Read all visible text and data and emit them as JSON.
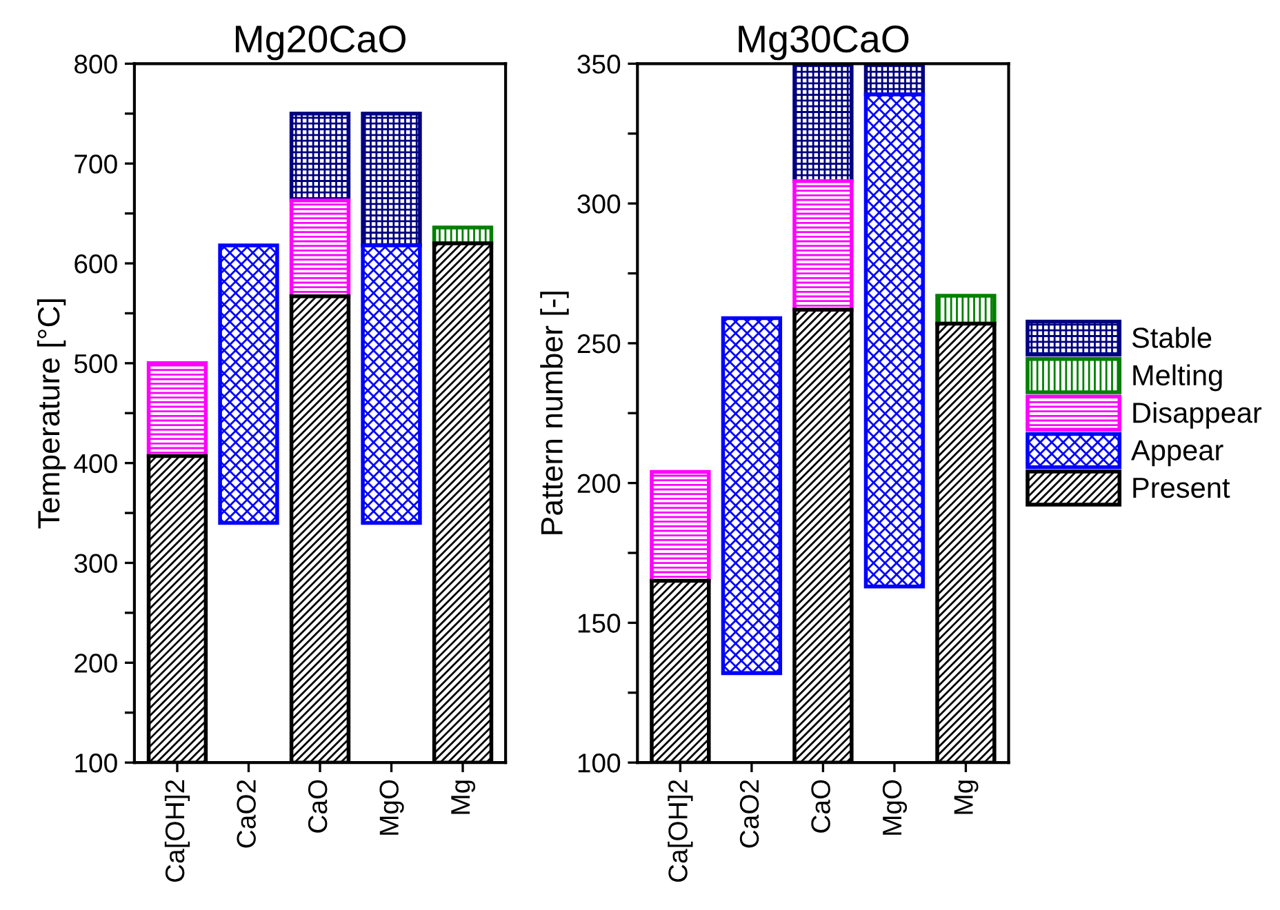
{
  "chart_data": [
    {
      "type": "bar",
      "title": "Mg20CaO",
      "ylabel": "Temperature [°C]",
      "categories": [
        "Ca[OH]2",
        "CaO2",
        "CaO",
        "MgO",
        "Mg"
      ],
      "ylim": [
        100,
        800
      ],
      "yticks": [
        100,
        {
          "value": 150,
          "label": null
        },
        200,
        {
          "value": 250,
          "label": null
        },
        300,
        {
          "value": 350,
          "label": null
        },
        400,
        {
          "value": 450,
          "label": null
        },
        500,
        {
          "value": 550,
          "label": null
        },
        600,
        {
          "value": 650,
          "label": null
        },
        700,
        {
          "value": 750,
          "label": null
        },
        800
      ],
      "legend": false,
      "series": [
        {
          "color": "#000080",
          "base": [
            null,
            null,
            663,
            618,
            null
          ],
          "values": [
            null,
            null,
            87,
            132,
            null
          ]
        },
        {
          "color": "#008000",
          "base": [
            null,
            null,
            null,
            null,
            620
          ],
          "values": [
            null,
            null,
            null,
            null,
            16
          ]
        },
        {
          "color": "#ff00ff",
          "base": [
            407,
            null,
            567,
            null,
            null
          ],
          "values": [
            93,
            null,
            96,
            null,
            null
          ]
        },
        {
          "color": "#0000ff",
          "base": [
            null,
            340,
            null,
            340,
            null
          ],
          "values": [
            null,
            278,
            null,
            278,
            null
          ]
        },
        {
          "color": "#000000",
          "base": [
            100,
            null,
            100,
            null,
            100
          ],
          "values": [
            307,
            null,
            467,
            null,
            520
          ]
        }
      ]
    },
    {
      "type": "bar",
      "title": "Mg30CaO",
      "ylabel": "Pattern number [-]",
      "categories": [
        "Ca[OH]2",
        "CaO2",
        "CaO",
        "MgO",
        "Mg"
      ],
      "ylim": [
        100,
        350
      ],
      "yticks": [
        100,
        {
          "value": 125,
          "label": null
        },
        150,
        {
          "value": 175,
          "label": null
        },
        200,
        {
          "value": 225,
          "label": null
        },
        250,
        {
          "value": 275,
          "label": null
        },
        300,
        {
          "value": 325,
          "label": null
        },
        350
      ],
      "legend": "right",
      "series": [
        {
          "name": "Stable",
          "color": "#000080",
          "base": [
            null,
            null,
            308,
            339,
            null
          ],
          "values": [
            null,
            null,
            42,
            11,
            null
          ]
        },
        {
          "name": "Melting",
          "color": "#008000",
          "base": [
            null,
            null,
            null,
            null,
            257
          ],
          "values": [
            null,
            null,
            null,
            null,
            10
          ]
        },
        {
          "name": "Disappear",
          "color": "#ff00ff",
          "base": [
            165,
            null,
            262,
            null,
            null
          ],
          "values": [
            39,
            null,
            46,
            null,
            null
          ]
        },
        {
          "name": "Appear",
          "color": "#0000ff",
          "base": [
            null,
            132,
            null,
            163,
            null
          ],
          "values": [
            null,
            127,
            null,
            176,
            null
          ]
        },
        {
          "name": "Present",
          "color": "#000000",
          "base": [
            100,
            null,
            100,
            null,
            100
          ],
          "values": [
            65,
            null,
            162,
            null,
            157
          ]
        }
      ]
    }
  ]
}
